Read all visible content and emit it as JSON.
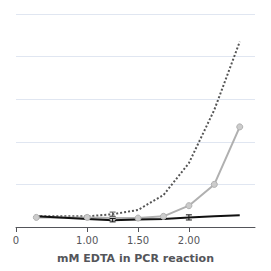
{
  "chart_data": {
    "type": "line",
    "xlabel": "mM EDTA in PCR reaction",
    "x": [
      0.5,
      1.0,
      1.25,
      1.5,
      1.75,
      2.0,
      2.25,
      2.5
    ],
    "series": [
      {
        "color": "#555555",
        "line_style": "dotted",
        "values": [
          1.0,
          1.0,
          1.1,
          1.3,
          2.0,
          3.5,
          6.0,
          9.2
        ],
        "yerr": [
          0.0,
          0.0,
          0.1,
          0.0,
          0.0,
          0.0,
          0.0,
          0.0
        ]
      },
      {
        "color": "#b0b0b0",
        "line_style": "solid",
        "marker": "circle",
        "values": [
          0.95,
          0.95,
          0.92,
          0.92,
          1.0,
          1.5,
          2.5,
          5.2
        ],
        "yerr": [
          0.0,
          0.0,
          0.0,
          0.0,
          0.0,
          0.0,
          0.0,
          0.0
        ]
      },
      {
        "color": "#111111",
        "line_style": "solid",
        "values": [
          1.0,
          0.88,
          0.82,
          0.85,
          0.88,
          0.95,
          1.0,
          1.05
        ],
        "yerr": [
          0.0,
          0.0,
          0.08,
          0.0,
          0.0,
          0.12,
          0.0,
          0.0
        ]
      }
    ],
    "xlim": [
      0.3,
      2.65
    ],
    "ylim": [
      0.5,
      10.5
    ],
    "xticks": [
      {
        "value": 0.3,
        "label": "0"
      },
      {
        "value": 1.0,
        "label": "1.00"
      },
      {
        "value": 1.5,
        "label": "1.50"
      },
      {
        "value": 2.0,
        "label": "2.00"
      }
    ],
    "yticks": [
      0.5,
      2.5,
      4.5,
      6.5,
      8.5,
      10.5
    ],
    "grid": true,
    "tick_labels": "x"
  }
}
